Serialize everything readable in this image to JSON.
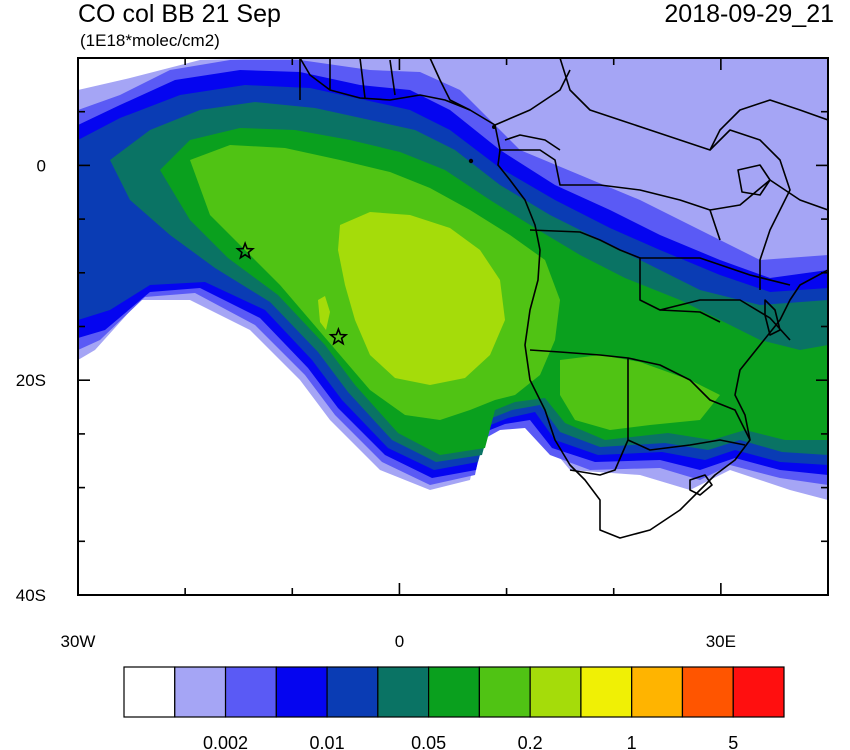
{
  "header": {
    "title": "CO col BB 21 Sep",
    "units": "(1E18*molec/cm2)",
    "datetime": "2018-09-29_21"
  },
  "axes": {
    "x_ticks": [
      {
        "value": -30,
        "label": "30W"
      },
      {
        "value": 0,
        "label": "0"
      },
      {
        "value": 30,
        "label": "30E"
      }
    ],
    "y_ticks": [
      {
        "value": 0,
        "label": "0"
      },
      {
        "value": -20,
        "label": "20S"
      },
      {
        "value": -40,
        "label": "40S"
      }
    ]
  },
  "colorbar": {
    "colors": [
      "#ffffff",
      "#a5a5f5",
      "#5a5af5",
      "#0505f0",
      "#0a3cb4",
      "#0a7364",
      "#0aa01e",
      "#50c314",
      "#a5dc0a",
      "#f0f005",
      "#ffb400",
      "#ff5500",
      "#ff0f0f"
    ],
    "labels": [
      "0.002",
      "0.01",
      "0.05",
      "0.2",
      "1",
      "5"
    ]
  },
  "markers": [
    {
      "name": "star-marker-1",
      "lon": -14.4,
      "lat": -8.0
    },
    {
      "name": "star-marker-2",
      "lon": -5.7,
      "lat": -16.0
    }
  ]
}
